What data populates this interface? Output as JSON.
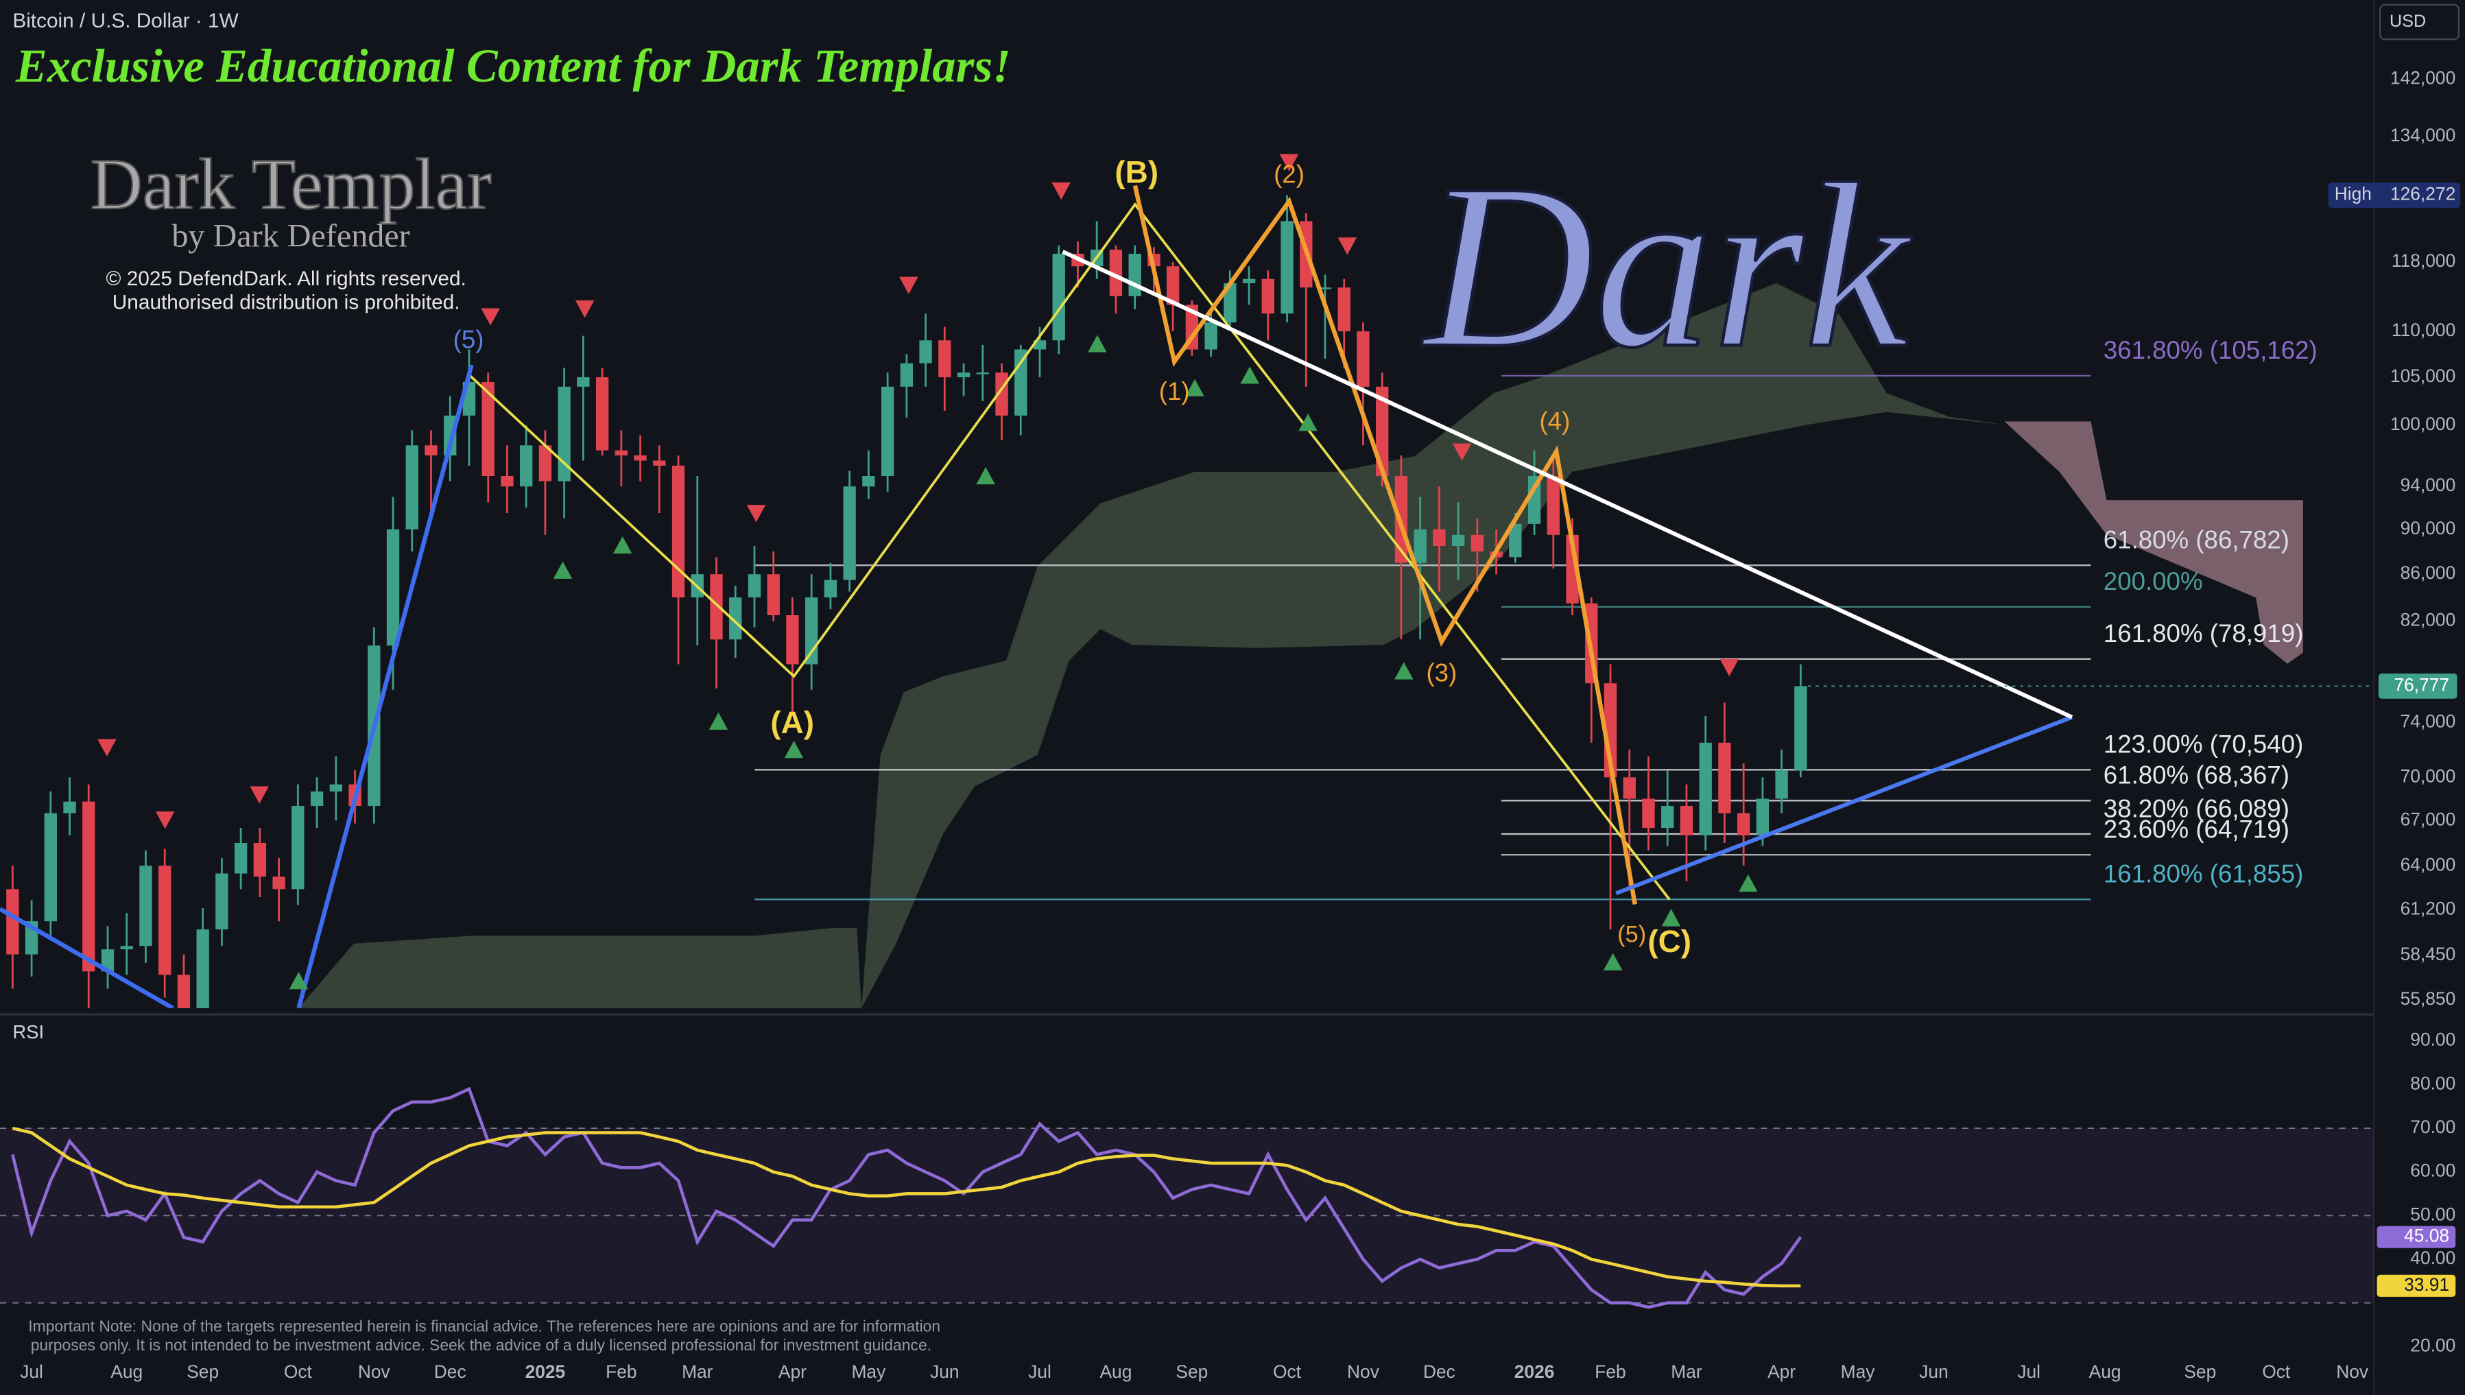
{
  "chart_data": [
    {
      "type": "candlestick",
      "title": "Bitcoin / U.S. Dollar · 1W",
      "currency": "USD",
      "branding": {
        "headline": "Exclusive Educational Content for Dark Templars!",
        "logo": "Dark Templar",
        "byline": "by Dark Defender",
        "copyright": [
          "© 2025 DefendDark. All rights reserved.",
          "Unauthorised distribution is prohibited."
        ]
      },
      "watermark": "Dark",
      "note": [
        "Important Note: None of the targets represented herein is financial advice. The references here are opinions and are for information",
        "purposes only. It is not intended to be investment advice. Seek the advice of a duly licensed professional for investment guidance."
      ],
      "log_scale": true,
      "grid": false,
      "up_color": "#3fa08a",
      "down_color": "#e0454f",
      "ylim": [
        55400,
        153900
      ],
      "yticks": [
        {
          "value": 142000,
          "label": "142,000"
        },
        {
          "value": 134000,
          "label": "134,000"
        },
        {
          "value": 118000,
          "label": "118,000"
        },
        {
          "value": 110000,
          "label": "110,000"
        },
        {
          "value": 105000,
          "label": "105,000"
        },
        {
          "value": 100000,
          "label": "100,000"
        },
        {
          "value": 94000,
          "label": "94,000"
        },
        {
          "value": 90000,
          "label": "90,000"
        },
        {
          "value": 86000,
          "label": "86,000"
        },
        {
          "value": 82000,
          "label": "82,000"
        },
        {
          "value": 74000,
          "label": "74,000"
        },
        {
          "value": 70000,
          "label": "70,000"
        },
        {
          "value": 67000,
          "label": "67,000"
        },
        {
          "value": 64000,
          "label": "64,000"
        },
        {
          "value": 61200,
          "label": "61,200"
        },
        {
          "value": 58450,
          "label": "58,450"
        },
        {
          "value": 55850,
          "label": "55,850"
        }
      ],
      "high": {
        "title": "High",
        "value": 126272,
        "label": "126,272"
      },
      "last_price": {
        "value": 76777,
        "label": "76,777"
      },
      "categories": [
        null,
        "Jul",
        null,
        null,
        null,
        null,
        "Aug",
        null,
        null,
        null,
        "Sep",
        null,
        null,
        null,
        null,
        "Oct",
        null,
        null,
        null,
        "Nov",
        null,
        null,
        null,
        "Dec",
        null,
        null,
        null,
        null,
        "2025",
        null,
        null,
        null,
        "Feb",
        null,
        null,
        null,
        "Mar",
        null,
        null,
        null,
        null,
        "Apr",
        null,
        null,
        null,
        "May",
        null,
        null,
        null,
        "Jun",
        null,
        null,
        null,
        null,
        "Jul",
        null,
        null,
        null,
        "Aug",
        null,
        null,
        null,
        "Sep",
        null,
        null,
        null,
        null,
        "Oct",
        null,
        null,
        null,
        "Nov",
        null,
        null,
        null,
        "Dec",
        null,
        null,
        null,
        null,
        "2026",
        null,
        null,
        null,
        "Feb",
        null,
        null,
        null,
        "Mar",
        null,
        null,
        null,
        null,
        "Apr",
        null,
        null,
        null,
        "May",
        null,
        null,
        null,
        "Jun",
        null,
        null,
        null,
        null,
        "Jul",
        null,
        null,
        null,
        "Aug",
        null,
        null,
        null,
        null,
        "Sep",
        null,
        null,
        null,
        "Oct",
        null,
        null,
        null,
        "Nov",
        null
      ],
      "open": [
        62500,
        58500,
        60500,
        67500,
        68300,
        57500,
        58800,
        59000,
        64000,
        57300,
        54000,
        60000,
        63500,
        65500,
        63300,
        62500,
        68000,
        69000,
        69500,
        68000,
        80000,
        90000,
        98000,
        97000,
        101000,
        104500,
        95000,
        94000,
        98000,
        94500,
        104000,
        105000,
        97500,
        97000,
        96500,
        96000,
        84000,
        86000,
        80500,
        84000,
        86000,
        82500,
        78500,
        84000,
        85500,
        94000,
        95000,
        104000,
        106500,
        109000,
        105000,
        105500,
        105500,
        101000,
        108000,
        109000,
        119000,
        117500,
        119500,
        114000,
        119000,
        117500,
        113000,
        108000,
        111000,
        115500,
        116000,
        112000,
        123000,
        115000,
        115000,
        110000,
        104000,
        95000,
        87000,
        90000,
        88500,
        89500,
        88000,
        87500,
        90500,
        95000,
        89500,
        83500,
        77000,
        70000,
        68500,
        66500,
        68000,
        66000,
        72500,
        67500,
        66000,
        68500,
        70500,
        null,
        null,
        null,
        null,
        null,
        null,
        null,
        null,
        null,
        null,
        null,
        null,
        null,
        null,
        null,
        null,
        null,
        null,
        null,
        null,
        null,
        null,
        null,
        null,
        null,
        null,
        null,
        null,
        null,
        null
      ],
      "high_values": [
        64000,
        61800,
        69000,
        70000,
        69500,
        60200,
        61000,
        65000,
        65100,
        58500,
        61300,
        64500,
        66500,
        66500,
        64500,
        69500,
        70000,
        71500,
        70500,
        81500,
        93000,
        99500,
        99500,
        103000,
        108000,
        105500,
        98000,
        100000,
        99500,
        106000,
        109500,
        106000,
        99500,
        99000,
        98000,
        97000,
        95000,
        87500,
        85000,
        88500,
        88000,
        84000,
        86000,
        87000,
        95500,
        97500,
        105500,
        107500,
        112000,
        110500,
        106500,
        108500,
        106500,
        108500,
        110500,
        120000,
        120500,
        123000,
        120000,
        120000,
        119800,
        118000,
        113500,
        112500,
        117000,
        117500,
        117000,
        126272,
        124000,
        116500,
        116000,
        111000,
        105500,
        97000,
        93000,
        94000,
        92500,
        91000,
        90000,
        91500,
        97500,
        97000,
        91000,
        84000,
        78500,
        72000,
        71500,
        70500,
        69500,
        74500,
        75500,
        71000,
        70000,
        72000,
        78500,
        null,
        null,
        null,
        null,
        null,
        null,
        null,
        null,
        null,
        null,
        null,
        null,
        null,
        null,
        null,
        null,
        null,
        null,
        null,
        null,
        null,
        null,
        null,
        null,
        null,
        null,
        null,
        null,
        null,
        null
      ],
      "low_values": [
        56500,
        57200,
        59500,
        66000,
        55000,
        56500,
        57300,
        58000,
        56000,
        52500,
        53000,
        59000,
        62500,
        62000,
        60500,
        61500,
        66500,
        67000,
        66800,
        66800,
        76500,
        88000,
        91000,
        94500,
        96000,
        92500,
        91500,
        92000,
        89500,
        91000,
        96500,
        97000,
        94000,
        94500,
        91500,
        78500,
        80000,
        76600,
        79000,
        81500,
        82000,
        74500,
        76500,
        83000,
        84500,
        92800,
        93500,
        100800,
        104000,
        101500,
        103000,
        102500,
        98500,
        99000,
        105000,
        107500,
        115000,
        116000,
        112000,
        112500,
        114500,
        110000,
        107300,
        107200,
        110500,
        113000,
        109000,
        111000,
        104000,
        107000,
        106000,
        98000,
        94000,
        80500,
        80500,
        84500,
        85500,
        84500,
        86000,
        87000,
        89500,
        86500,
        82500,
        72500,
        60000,
        62500,
        65000,
        65300,
        63000,
        65000,
        65500,
        64000,
        65300,
        67500,
        70000,
        null,
        null,
        null,
        null,
        null,
        null,
        null,
        null,
        null,
        null,
        null,
        null,
        null,
        null,
        null,
        null,
        null,
        null,
        null,
        null,
        null,
        null,
        null,
        null,
        null,
        null,
        null,
        null,
        null,
        null
      ],
      "close": [
        58500,
        60500,
        67500,
        68300,
        57500,
        58800,
        59000,
        64000,
        57300,
        54000,
        60000,
        63500,
        65500,
        63300,
        62500,
        68000,
        69000,
        69500,
        68000,
        80000,
        90000,
        98000,
        97000,
        101000,
        104500,
        95000,
        94000,
        98000,
        94500,
        104000,
        105000,
        97500,
        97000,
        96500,
        96000,
        84000,
        86000,
        80500,
        84000,
        86000,
        82500,
        78500,
        84000,
        85500,
        94000,
        95000,
        104000,
        106500,
        109000,
        105000,
        105500,
        105500,
        101000,
        108000,
        109000,
        119000,
        117500,
        119500,
        114000,
        119000,
        117500,
        113000,
        108000,
        111000,
        115500,
        116000,
        112000,
        123000,
        115000,
        115000,
        110000,
        104000,
        95000,
        87000,
        90000,
        88500,
        89500,
        88000,
        87500,
        90500,
        95000,
        89500,
        83500,
        77000,
        70000,
        68500,
        66500,
        68000,
        66000,
        72500,
        67500,
        66000,
        68500,
        70500,
        76777,
        null,
        null,
        null,
        null,
        null,
        null,
        null,
        null,
        null,
        null,
        null,
        null,
        null,
        null,
        null,
        null,
        null,
        null,
        null,
        null,
        null,
        null,
        null,
        null,
        null,
        null,
        null,
        null,
        null,
        null
      ],
      "fib_levels": [
        {
          "label": "361.80% (105,162)",
          "value": 105162,
          "color": "#8b6cc8"
        },
        {
          "label": "61.80% (86,782)",
          "value": 86782,
          "color": "#d8dce4"
        },
        {
          "label": "200.00%",
          "value": 83200,
          "color": "#4a9e9a"
        },
        {
          "label": "161.80% (78,919)",
          "value": 78919,
          "color": "#e6e8ee"
        },
        {
          "label": "123.00% (70,540)",
          "value": 70540,
          "color": "#e6e8ee"
        },
        {
          "label": "61.80% (68,367)",
          "value": 68367,
          "color": "#e6e8ee"
        },
        {
          "label": "38.20% (66,089)",
          "value": 66089,
          "color": "#e6e8ee"
        },
        {
          "label": "23.60% (64,719)",
          "value": 64719,
          "color": "#e6e8ee"
        },
        {
          "label": "161.80% (61,855)",
          "value": 61855,
          "color": "#4fb3c8"
        }
      ],
      "wave_labels": [
        {
          "text": "(5)",
          "color": "#5b7fe0"
        },
        {
          "text": "(A)",
          "color": "#f5d547"
        },
        {
          "text": "(B)",
          "color": "#f5d547"
        },
        {
          "text": "(1)",
          "color": "#f0a030"
        },
        {
          "text": "(2)",
          "color": "#f0a030"
        },
        {
          "text": "(3)",
          "color": "#f0a030"
        },
        {
          "text": "(4)",
          "color": "#f0a030"
        },
        {
          "text": "(5)",
          "color": "#f0a030"
        },
        {
          "text": "(C)",
          "color": "#f5d547"
        }
      ]
    },
    {
      "type": "line",
      "title": "RSI",
      "ylim": [
        8.9,
        95
      ],
      "yticks": [
        {
          "value": 90,
          "label": "90.00"
        },
        {
          "value": 80,
          "label": "80.00"
        },
        {
          "value": 70,
          "label": "70.00"
        },
        {
          "value": 60,
          "label": "60.00"
        },
        {
          "value": 50,
          "label": "50.00"
        },
        {
          "value": 40,
          "label": "40.00"
        },
        {
          "value": 20,
          "label": "20.00"
        }
      ],
      "bands": [
        70,
        50,
        30
      ],
      "series": [
        {
          "color": "#8e6bd6",
          "values": [
            64,
            46,
            58,
            67,
            62,
            50,
            51,
            49,
            55,
            45,
            44,
            51,
            55,
            58,
            55,
            53,
            60,
            58,
            57,
            69,
            74,
            76,
            76,
            77,
            79,
            67,
            66,
            69,
            64,
            68,
            69,
            62,
            61,
            61,
            62,
            58,
            44,
            51,
            49,
            46,
            43,
            49,
            49,
            56,
            58,
            64,
            65,
            62,
            60,
            58,
            55,
            60,
            62,
            64,
            71,
            67,
            69,
            64,
            65,
            64,
            60,
            54,
            56,
            57,
            56,
            55,
            64,
            56,
            49,
            54,
            47,
            40,
            35,
            38,
            40,
            38,
            39,
            40,
            42,
            42,
            44,
            43,
            38,
            33,
            30,
            30,
            29,
            30,
            30,
            37,
            33,
            32,
            36,
            39,
            45.08,
            null,
            null,
            null,
            null,
            null,
            null,
            null,
            null,
            null,
            null,
            null,
            null,
            null,
            null,
            null,
            null,
            null,
            null,
            null,
            null,
            null,
            null,
            null,
            null,
            null,
            null,
            null,
            null,
            null,
            null
          ]
        },
        {
          "color": "#f2d53c",
          "values": [
            70,
            69,
            66,
            63,
            61,
            59,
            57,
            56,
            55,
            54.7,
            54,
            53.5,
            53,
            52.5,
            52,
            52,
            52,
            52,
            52.5,
            53,
            56,
            59,
            62,
            64,
            66,
            67,
            68,
            68.5,
            69,
            69,
            69,
            69,
            69,
            69,
            68,
            67,
            65,
            64,
            63,
            62,
            60,
            59,
            57,
            56,
            55,
            54.5,
            54.5,
            55,
            55,
            55,
            55.5,
            56,
            56.5,
            58,
            59,
            60,
            62,
            63,
            63.5,
            63.8,
            63.8,
            63,
            62.5,
            62,
            62,
            62,
            62,
            61.5,
            60,
            58,
            57,
            55,
            53,
            51,
            50,
            49,
            48,
            47.5,
            46.5,
            45.5,
            44.5,
            43.5,
            42,
            40,
            39,
            38,
            37,
            36,
            35.5,
            35,
            34.7,
            34.3,
            34,
            33.9,
            33.91,
            null,
            null,
            null,
            null,
            null,
            null,
            null,
            null,
            null,
            null,
            null,
            null,
            null,
            null,
            null,
            null,
            null,
            null,
            null,
            null,
            null,
            null,
            null,
            null,
            null,
            null,
            null,
            null,
            null,
            null
          ]
        }
      ]
    }
  ]
}
